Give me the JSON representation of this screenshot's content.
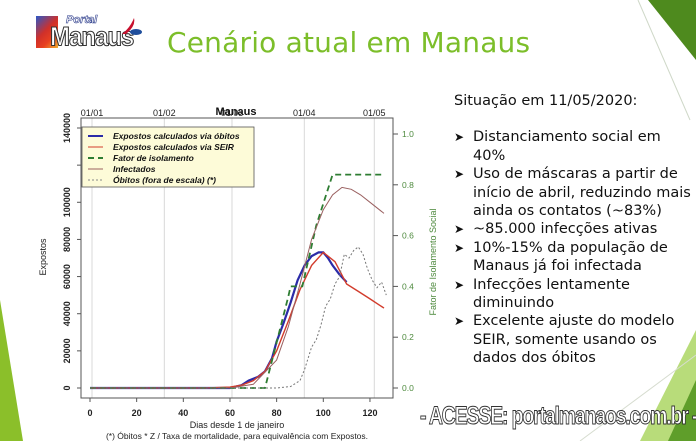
{
  "logo": {
    "line1": "Portal",
    "line2": "Manaus"
  },
  "slide": {
    "title": "Cenário atual em Manaus"
  },
  "side_panel": {
    "heading": "Situação em 11/05/2020:",
    "bullets": [
      "Distanciamento social em 40%",
      "Uso de máscaras a partir de início de abril, reduzindo mais ainda os contatos (~83%)",
      "~85.000 infecções ativas",
      "10%-15% da população de Manaus já foi infectada",
      "Infecções lentamente diminuindo",
      "Excelente ajuste do modelo SEIR, somente usando os dados dos óbitos"
    ],
    "bullet_icon": "arrowhead-bullet-icon"
  },
  "watermark": "- ACESSE: portalmanaos.com.br -",
  "colors": {
    "title_green": "#7cbe2a",
    "accent_green": "#8bbf2a",
    "dark_green": "#4e8a1e"
  },
  "chart_data": {
    "type": "line",
    "title": "Manaus",
    "xlabel": "Dias desde 1 de janeiro",
    "ylabel": "Expostos",
    "y2label": "Fator de Isolamento Social",
    "footnote": "(*) Óbitos * Z / Taxa de mortalidade, para equivalência com Expostos.",
    "xlim": [
      0,
      130
    ],
    "ylim": [
      0,
      140000
    ],
    "y2lim": [
      0,
      1.0
    ],
    "x_ticks": [
      0,
      20,
      40,
      60,
      80,
      100,
      120
    ],
    "y_ticks": [
      0,
      20000,
      40000,
      60000,
      80000,
      100000,
      140000
    ],
    "y2_ticks": [
      "0.0",
      "0.2",
      "0.4",
      "0.6",
      "0.8",
      "1.0"
    ],
    "top_date_ticks": [
      {
        "label": "01/01",
        "day": 0
      },
      {
        "label": "01/02",
        "day": 31
      },
      {
        "label": "01/03",
        "day": 60
      },
      {
        "label": "01/04",
        "day": 91
      },
      {
        "label": "01/05",
        "day": 121
      }
    ],
    "grid": "vertical at month starts",
    "legend_position": "top-left",
    "legend": [
      {
        "name": "Expostos calculados via óbitos",
        "color": "#2b2ba8",
        "style": "solid"
      },
      {
        "name": "Expostos calculados via SEIR",
        "color": "#d23c2c",
        "style": "solid"
      },
      {
        "name": "Fator de isolamento",
        "color": "#2e7d32",
        "style": "dashed"
      },
      {
        "name": "Infectados",
        "color": "#9a6060",
        "style": "solid"
      },
      {
        "name": "Óbitos (fora de escala) (*)",
        "color": "#888888",
        "style": "dotted"
      }
    ],
    "series": [
      {
        "name": "Expostos calculados via óbitos",
        "axis": "left",
        "x": [
          0,
          60,
          65,
          68,
          72,
          75,
          78,
          80,
          83,
          86,
          89,
          92,
          95,
          98,
          100,
          102,
          104,
          107,
          110
        ],
        "y": [
          0,
          0,
          1500,
          4000,
          6000,
          9000,
          16000,
          25000,
          35000,
          46000,
          58000,
          66000,
          71000,
          73000,
          73000,
          70000,
          66000,
          61000,
          57000
        ]
      },
      {
        "name": "Expostos calculados via SEIR",
        "axis": "left",
        "x": [
          0,
          50,
          60,
          65,
          70,
          75,
          80,
          85,
          90,
          95,
          100,
          105,
          110,
          115,
          120,
          126
        ],
        "y": [
          0,
          0,
          500,
          1500,
          4000,
          9000,
          20000,
          36000,
          53000,
          66000,
          73000,
          68000,
          56000,
          52000,
          48000,
          43000
        ]
      },
      {
        "name": "Fator de isolamento",
        "axis": "right",
        "x": [
          0,
          74,
          75,
          85,
          86,
          91,
          97,
          104,
          108,
          126
        ],
        "y": [
          0,
          0,
          0.0,
          0.36,
          0.4,
          0.4,
          0.64,
          0.84,
          0.84,
          0.84
        ]
      },
      {
        "name": "Infectados",
        "axis": "left",
        "x": [
          0,
          60,
          70,
          80,
          85,
          90,
          95,
          100,
          104,
          108,
          112,
          116,
          120,
          126
        ],
        "y": [
          0,
          0,
          2000,
          15000,
          33000,
          56000,
          80000,
          96000,
          104000,
          108000,
          107000,
          104000,
          100000,
          94000
        ]
      },
      {
        "name": "Óbitos (fora de escala) (*)",
        "axis": "left",
        "x": [
          0,
          80,
          86,
          90,
          92,
          95,
          97,
          99,
          101,
          103,
          105,
          107,
          109,
          111,
          113,
          115,
          117,
          119,
          121,
          123,
          125,
          127
        ],
        "y": [
          0,
          0,
          800,
          4000,
          10000,
          22000,
          26000,
          34000,
          44000,
          48000,
          56000,
          60000,
          72000,
          70000,
          74000,
          76000,
          72000,
          64000,
          58000,
          54000,
          57000,
          50000
        ]
      }
    ]
  }
}
